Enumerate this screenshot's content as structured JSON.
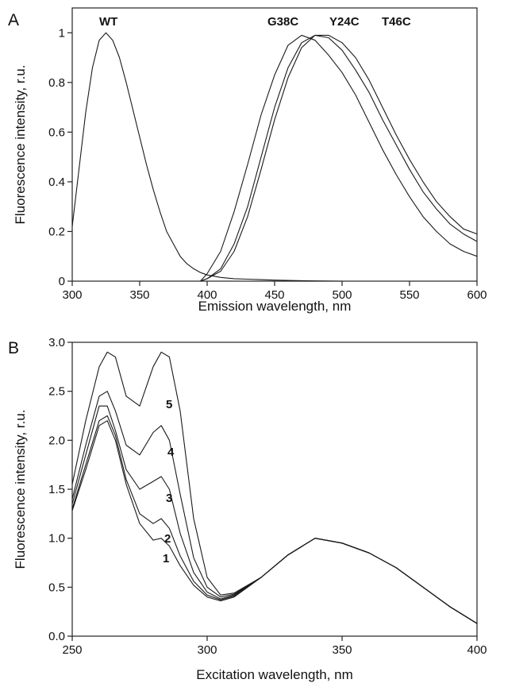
{
  "chart_data": [
    {
      "panel": "A",
      "type": "line",
      "xlabel": "Emission wavelength, nm",
      "ylabel": "Fluorescence intensity, r.u.",
      "xlim": [
        300,
        600
      ],
      "ylim": [
        0,
        1.1
      ],
      "x_ticks": [
        "300",
        "350",
        "400",
        "450",
        "500",
        "550",
        "600"
      ],
      "y_ticks": [
        "0",
        "0.2",
        "0.4",
        "0.6",
        "0.8",
        "1"
      ],
      "grid": false,
      "series": [
        {
          "name": "WT",
          "x": [
            300,
            305,
            310,
            315,
            320,
            325,
            330,
            335,
            340,
            345,
            350,
            355,
            360,
            365,
            370,
            375,
            380,
            385,
            390,
            395,
            400,
            410,
            420,
            430,
            440,
            450,
            460,
            470,
            480,
            500
          ],
          "y": [
            0.22,
            0.45,
            0.68,
            0.86,
            0.97,
            1.0,
            0.97,
            0.9,
            0.8,
            0.69,
            0.58,
            0.47,
            0.37,
            0.28,
            0.2,
            0.15,
            0.1,
            0.07,
            0.05,
            0.035,
            0.025,
            0.015,
            0.01,
            0.008,
            0.006,
            0.004,
            0.003,
            0.002,
            0.001,
            0.0
          ]
        },
        {
          "name": "G38C",
          "x": [
            395,
            400,
            410,
            420,
            430,
            440,
            450,
            460,
            470,
            480,
            490,
            500,
            510,
            520,
            530,
            540,
            550,
            560,
            570,
            580,
            590,
            600
          ],
          "y": [
            0.0,
            0.03,
            0.12,
            0.28,
            0.47,
            0.67,
            0.83,
            0.95,
            0.99,
            0.97,
            0.91,
            0.84,
            0.75,
            0.64,
            0.53,
            0.43,
            0.34,
            0.26,
            0.2,
            0.15,
            0.12,
            0.1
          ]
        },
        {
          "name": "Y24C",
          "x": [
            395,
            400,
            410,
            420,
            430,
            440,
            450,
            460,
            470,
            480,
            490,
            500,
            510,
            520,
            530,
            540,
            550,
            560,
            570,
            580,
            590,
            600
          ],
          "y": [
            0.0,
            0.01,
            0.05,
            0.15,
            0.3,
            0.5,
            0.7,
            0.86,
            0.96,
            0.99,
            0.98,
            0.93,
            0.85,
            0.76,
            0.65,
            0.55,
            0.45,
            0.36,
            0.29,
            0.23,
            0.19,
            0.16
          ]
        },
        {
          "name": "T46C",
          "x": [
            395,
            400,
            410,
            420,
            430,
            440,
            450,
            460,
            470,
            480,
            490,
            500,
            510,
            520,
            530,
            540,
            550,
            560,
            570,
            580,
            590,
            600
          ],
          "y": [
            0.0,
            0.01,
            0.04,
            0.12,
            0.26,
            0.45,
            0.65,
            0.82,
            0.94,
            0.99,
            0.99,
            0.96,
            0.9,
            0.81,
            0.7,
            0.59,
            0.49,
            0.4,
            0.32,
            0.26,
            0.21,
            0.19
          ]
        }
      ]
    },
    {
      "panel": "B",
      "type": "line",
      "xlabel": "Excitation wavelength, nm",
      "ylabel": "Fluorescence intensity, r.u.",
      "xlim": [
        250,
        400
      ],
      "ylim": [
        0,
        3.0
      ],
      "x_ticks": [
        "250",
        "300",
        "350",
        "400"
      ],
      "y_ticks": [
        "0.0",
        "0.5",
        "1.0",
        "1.5",
        "2.0",
        "2.5",
        "3.0"
      ],
      "grid": false,
      "series": [
        {
          "name": "1",
          "x": [
            250,
            255,
            260,
            263,
            266,
            270,
            275,
            280,
            283,
            286,
            290,
            295,
            300,
            305,
            310,
            320,
            330,
            340,
            350,
            360,
            370,
            380,
            390,
            400
          ],
          "y": [
            1.28,
            1.7,
            2.15,
            2.2,
            2.0,
            1.55,
            1.15,
            0.98,
            1.0,
            0.92,
            0.72,
            0.52,
            0.4,
            0.36,
            0.4,
            0.6,
            0.83,
            1.0,
            0.95,
            0.85,
            0.7,
            0.5,
            0.3,
            0.13
          ]
        },
        {
          "name": "2",
          "x": [
            250,
            255,
            260,
            263,
            266,
            270,
            275,
            280,
            283,
            286,
            290,
            295,
            300,
            305,
            310,
            320,
            330,
            340,
            350,
            360,
            370,
            380,
            390,
            400
          ],
          "y": [
            1.3,
            1.75,
            2.2,
            2.25,
            2.05,
            1.6,
            1.25,
            1.15,
            1.2,
            1.1,
            0.82,
            0.56,
            0.42,
            0.37,
            0.41,
            0.6,
            0.83,
            1.0,
            0.95,
            0.85,
            0.7,
            0.5,
            0.3,
            0.13
          ]
        },
        {
          "name": "3",
          "x": [
            250,
            255,
            260,
            263,
            266,
            270,
            275,
            280,
            283,
            286,
            290,
            295,
            300,
            305,
            310,
            320,
            330,
            340,
            350,
            360,
            370,
            380,
            390,
            400
          ],
          "y": [
            1.35,
            1.85,
            2.35,
            2.35,
            2.1,
            1.7,
            1.5,
            1.58,
            1.63,
            1.5,
            1.05,
            0.65,
            0.45,
            0.38,
            0.42,
            0.6,
            0.83,
            1.0,
            0.95,
            0.85,
            0.7,
            0.5,
            0.3,
            0.13
          ]
        },
        {
          "name": "4",
          "x": [
            250,
            255,
            260,
            263,
            266,
            270,
            275,
            280,
            283,
            286,
            290,
            295,
            300,
            305,
            310,
            320,
            330,
            340,
            350,
            360,
            370,
            380,
            390,
            400
          ],
          "y": [
            1.4,
            1.95,
            2.45,
            2.5,
            2.3,
            1.95,
            1.85,
            2.08,
            2.15,
            2.0,
            1.45,
            0.8,
            0.5,
            0.4,
            0.43,
            0.6,
            0.83,
            1.0,
            0.95,
            0.85,
            0.7,
            0.5,
            0.3,
            0.13
          ]
        },
        {
          "name": "5",
          "x": [
            250,
            255,
            260,
            263,
            266,
            270,
            275,
            280,
            283,
            286,
            290,
            295,
            300,
            305,
            310,
            320,
            330,
            340,
            350,
            360,
            370,
            380,
            390,
            400
          ],
          "y": [
            1.55,
            2.2,
            2.75,
            2.9,
            2.85,
            2.45,
            2.35,
            2.75,
            2.9,
            2.85,
            2.3,
            1.2,
            0.6,
            0.42,
            0.44,
            0.6,
            0.83,
            1.0,
            0.95,
            0.85,
            0.7,
            0.5,
            0.3,
            0.13
          ]
        }
      ]
    }
  ]
}
